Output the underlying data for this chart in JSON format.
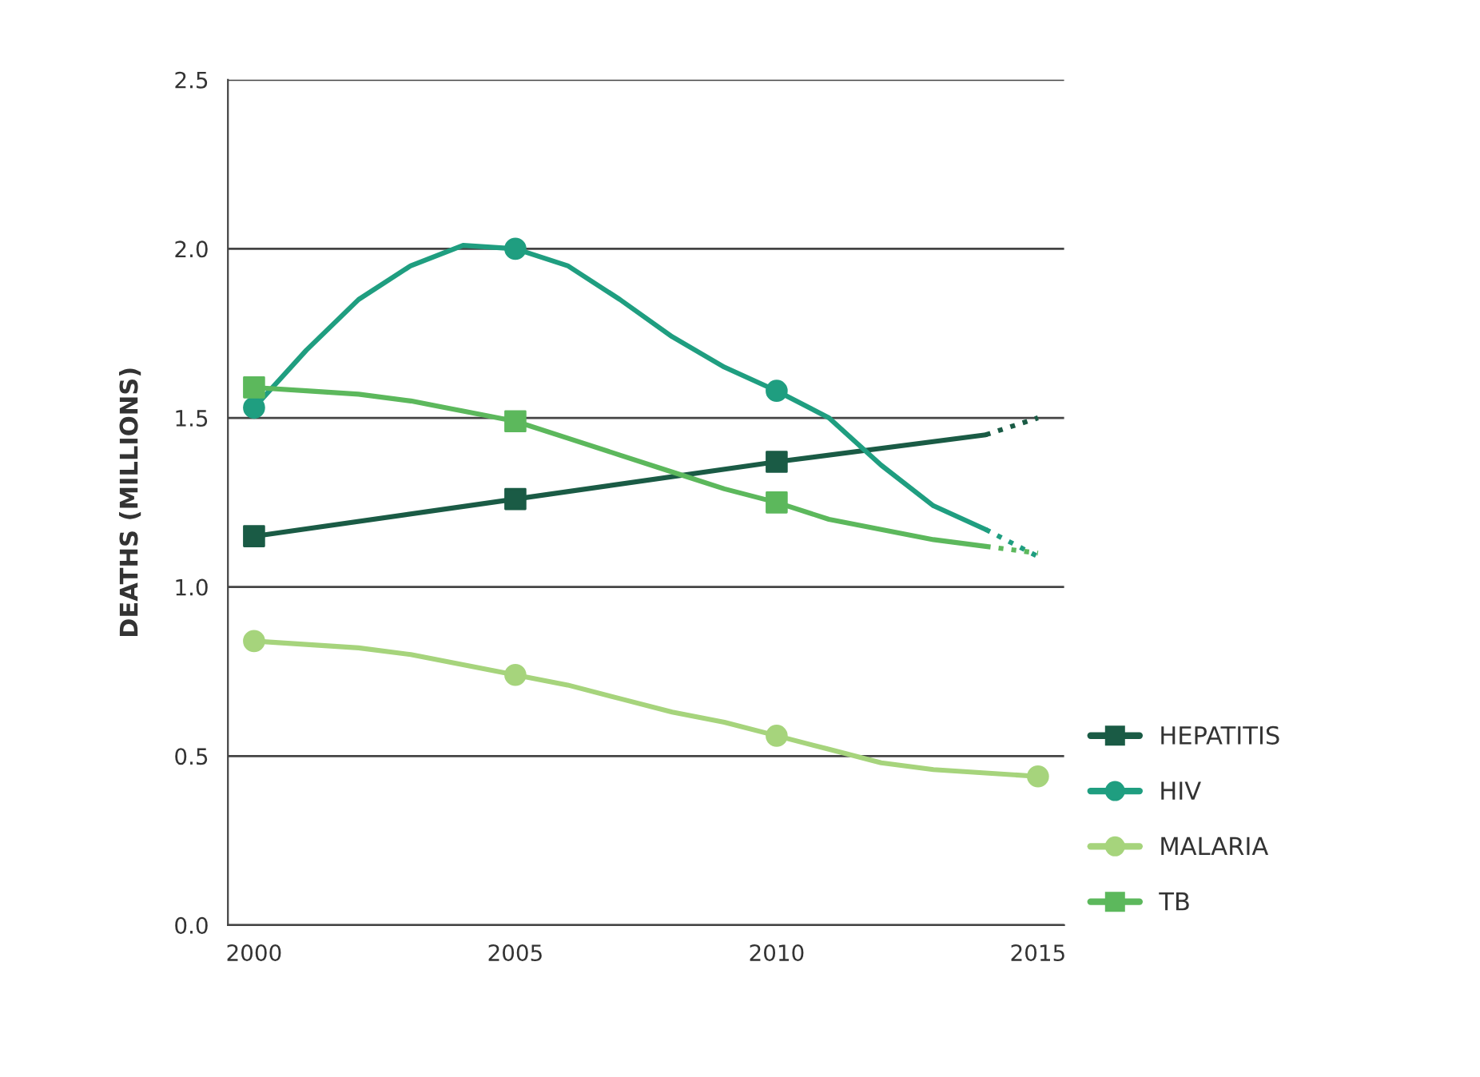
{
  "chart_data": {
    "type": "line",
    "ylabel": "DEATHS (MILLIONS)",
    "xlim": [
      1999.5,
      2015.5
    ],
    "xticks": [
      {
        "value": 2000,
        "label": "2000"
      },
      {
        "value": 2005,
        "label": "2005"
      },
      {
        "value": 2010,
        "label": "2010"
      },
      {
        "value": 2015,
        "label": "2015"
      }
    ],
    "ylim": [
      0,
      2.5
    ],
    "yticks": [
      {
        "value": 0,
        "label": "0.0"
      },
      {
        "value": 0.5,
        "label": "0.5"
      },
      {
        "value": 1,
        "label": "1.0"
      },
      {
        "value": 1.5,
        "label": "1.5"
      },
      {
        "value": 2,
        "label": "2.0"
      },
      {
        "value": 2.5,
        "label": "2.5"
      }
    ],
    "grid": "y",
    "legend": "bottom right",
    "series": [
      {
        "color": "#1a5b45",
        "marker": "none",
        "line_style": "solid",
        "x": [
          2000,
          2005,
          2010,
          2014
        ],
        "values": [
          1.15,
          1.26,
          1.37,
          1.45
        ]
      },
      {
        "color": "#1a5b45",
        "marker": "none",
        "line_style": "dotted",
        "x": [
          2014,
          2015
        ],
        "values": [
          1.45,
          1.5
        ]
      },
      {
        "color": "#1f9e80",
        "marker": "none",
        "line_style": "solid",
        "x": [
          2000,
          2001,
          2002,
          2003,
          2004,
          2005,
          2006,
          2007,
          2008,
          2009,
          2010,
          2011,
          2012,
          2013,
          2014
        ],
        "values": [
          1.53,
          1.7,
          1.85,
          1.95,
          2.01,
          2.0,
          1.95,
          1.85,
          1.74,
          1.65,
          1.58,
          1.5,
          1.36,
          1.24,
          1.17
        ]
      },
      {
        "color": "#1f9e80",
        "marker": "none",
        "line_style": "dotted",
        "x": [
          2014,
          2015
        ],
        "values": [
          1.17,
          1.09
        ]
      },
      {
        "color": "#a6d47c",
        "marker": "none",
        "line_style": "solid",
        "x": [
          2000,
          2001,
          2002,
          2003,
          2004,
          2005,
          2006,
          2007,
          2008,
          2009,
          2010,
          2011,
          2012,
          2013,
          2014,
          2015
        ],
        "values": [
          0.84,
          0.83,
          0.82,
          0.8,
          0.77,
          0.74,
          0.71,
          0.67,
          0.63,
          0.6,
          0.56,
          0.52,
          0.48,
          0.46,
          0.45,
          0.44
        ]
      },
      {
        "color": "#5cb85c",
        "marker": "none",
        "line_style": "solid",
        "x": [
          2000,
          2001,
          2002,
          2003,
          2004,
          2005,
          2006,
          2007,
          2008,
          2009,
          2010,
          2011,
          2012,
          2013,
          2014
        ],
        "values": [
          1.59,
          1.58,
          1.57,
          1.55,
          1.52,
          1.49,
          1.44,
          1.39,
          1.34,
          1.29,
          1.25,
          1.2,
          1.17,
          1.14,
          1.12
        ]
      },
      {
        "color": "#5cb85c",
        "marker": "none",
        "line_style": "dotted",
        "x": [
          2014,
          2015
        ],
        "values": [
          1.12,
          1.1
        ]
      },
      {
        "type": "scatter",
        "name": "HEPATITIS",
        "color": "#1a5b45",
        "marker": "square",
        "x": [
          2000,
          2005,
          2010
        ],
        "values": [
          1.15,
          1.26,
          1.37
        ]
      },
      {
        "type": "scatter",
        "name": "HIV",
        "color": "#1f9e80",
        "marker": "circle",
        "x": [
          2000,
          2005,
          2010
        ],
        "values": [
          1.53,
          2.0,
          1.58
        ]
      },
      {
        "type": "scatter",
        "name": "MALARIA",
        "color": "#a6d47c",
        "marker": "circle",
        "x": [
          2000,
          2005,
          2010,
          2015
        ],
        "values": [
          0.84,
          0.74,
          0.56,
          0.44
        ]
      },
      {
        "type": "scatter",
        "name": "TB",
        "color": "#5cb85c",
        "marker": "square",
        "x": [
          2000,
          2005,
          2010
        ],
        "values": [
          1.59,
          1.49,
          1.25
        ]
      }
    ]
  }
}
